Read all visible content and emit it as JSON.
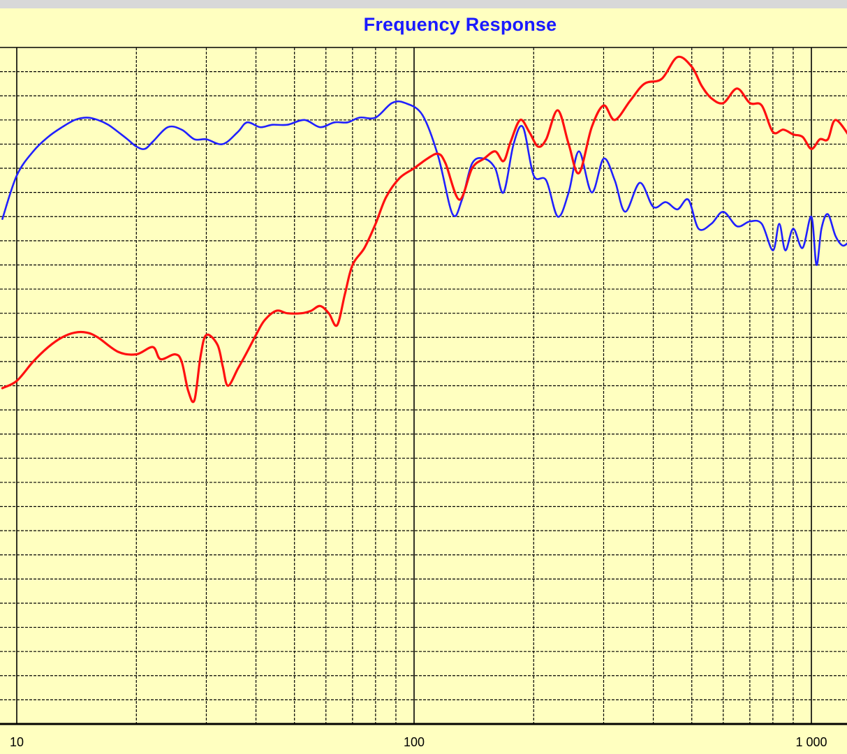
{
  "chart_data": {
    "type": "line",
    "title": "Frequency Response",
    "xscale": "log",
    "xlim": [
      9.2,
      1250
    ],
    "x_tick_labels": [
      "10",
      "100",
      "1 000"
    ],
    "x_ticks": [
      10,
      100,
      1000
    ],
    "grid": true,
    "y_gridlines": 28,
    "series": [
      {
        "color": "#2020ff",
        "x": [
          9.2,
          10,
          11,
          12,
          13,
          14,
          15,
          16,
          17,
          18,
          19,
          20,
          21,
          22,
          24,
          26,
          28,
          30,
          33,
          36,
          38,
          41,
          44,
          48,
          53,
          58,
          63,
          68,
          73,
          80,
          88,
          95,
          105,
          115,
          125,
          132,
          140,
          150,
          160,
          168,
          178,
          188,
          200,
          215,
          230,
          245,
          260,
          280,
          300,
          320,
          340,
          370,
          400,
          430,
          460,
          490,
          520,
          560,
          600,
          650,
          700,
          750,
          800,
          830,
          860,
          900,
          950,
          1000,
          1030,
          1060,
          1100,
          1150,
          1200,
          1250
        ],
        "y": [
          7.1,
          5.3,
          4.3,
          3.7,
          3.3,
          3.0,
          2.9,
          3.0,
          3.2,
          3.5,
          3.8,
          4.1,
          4.2,
          3.9,
          3.3,
          3.4,
          3.8,
          3.8,
          4.0,
          3.5,
          3.1,
          3.3,
          3.2,
          3.2,
          3.0,
          3.3,
          3.1,
          3.1,
          2.9,
          2.9,
          2.3,
          2.3,
          2.8,
          4.5,
          6.9,
          6.3,
          4.8,
          4.6,
          5.0,
          6.0,
          4.0,
          3.3,
          5.3,
          5.5,
          7.0,
          6.0,
          4.3,
          6.0,
          4.6,
          5.5,
          6.8,
          5.6,
          6.6,
          6.4,
          6.7,
          6.3,
          7.5,
          7.3,
          6.8,
          7.4,
          7.2,
          7.3,
          8.4,
          7.3,
          8.4,
          7.5,
          8.3,
          7.0,
          9.0,
          7.5,
          6.9,
          7.8,
          8.2,
          8.0
        ]
      },
      {
        "color": "#ff1010",
        "x": [
          9.2,
          10,
          11,
          12,
          13,
          14,
          15,
          16,
          18,
          20,
          22,
          23,
          25,
          26,
          27,
          28,
          29,
          30,
          32,
          33,
          34,
          36,
          38,
          40,
          42,
          45,
          48,
          52,
          55,
          58,
          61,
          64,
          67,
          70,
          75,
          80,
          85,
          92,
          100,
          108,
          115,
          120,
          130,
          140,
          150,
          160,
          168,
          175,
          185,
          195,
          205,
          215,
          230,
          245,
          260,
          280,
          300,
          320,
          350,
          380,
          420,
          460,
          500,
          530,
          560,
          600,
          650,
          700,
          750,
          800,
          850,
          900,
          950,
          1000,
          1050,
          1100,
          1150,
          1250
        ],
        "y": [
          14.1,
          13.8,
          13.0,
          12.4,
          12.0,
          11.8,
          11.8,
          12.0,
          12.6,
          12.7,
          12.4,
          12.9,
          12.7,
          13.0,
          14.2,
          14.6,
          12.8,
          11.9,
          12.3,
          13.2,
          14.0,
          13.3,
          12.6,
          11.9,
          11.3,
          10.9,
          11.0,
          11.0,
          10.9,
          10.7,
          11.0,
          11.5,
          10.2,
          9.0,
          8.3,
          7.3,
          6.2,
          5.4,
          5.0,
          4.6,
          4.4,
          4.8,
          6.3,
          5.0,
          4.6,
          4.3,
          4.7,
          3.9,
          3.0,
          3.5,
          4.1,
          3.8,
          2.6,
          4.0,
          5.2,
          3.3,
          2.4,
          3.0,
          2.2,
          1.5,
          1.3,
          0.4,
          0.8,
          1.6,
          2.1,
          2.3,
          1.7,
          2.3,
          2.4,
          3.5,
          3.4,
          3.6,
          3.7,
          4.2,
          3.8,
          3.8,
          3.0,
          3.7
        ]
      }
    ]
  }
}
